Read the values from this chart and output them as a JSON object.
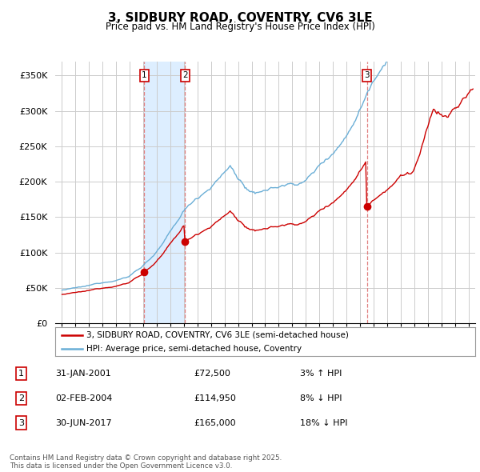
{
  "title": "3, SIDBURY ROAD, COVENTRY, CV6 3LE",
  "subtitle": "Price paid vs. HM Land Registry's House Price Index (HPI)",
  "ylabel_ticks": [
    "£0",
    "£50K",
    "£100K",
    "£150K",
    "£200K",
    "£250K",
    "£300K",
    "£350K"
  ],
  "ylim": [
    0,
    370000
  ],
  "xlim_start": 1994.5,
  "xlim_end": 2025.5,
  "hpi_color": "#6aaed6",
  "price_color": "#cc0000",
  "shade_color": "#ddeeff",
  "vline_color": "#e08080",
  "background_color": "#ffffff",
  "grid_color": "#cccccc",
  "legend_label_price": "3, SIDBURY ROAD, COVENTRY, CV6 3LE (semi-detached house)",
  "legend_label_hpi": "HPI: Average price, semi-detached house, Coventry",
  "sales": [
    {
      "num": 1,
      "date_label": "31-JAN-2001",
      "date_x": 2001.08,
      "price": 72500,
      "pct": "3%",
      "dir": "↑"
    },
    {
      "num": 2,
      "date_label": "02-FEB-2004",
      "date_x": 2004.09,
      "price": 114950,
      "pct": "8%",
      "dir": "↓"
    },
    {
      "num": 3,
      "date_label": "30-JUN-2017",
      "date_x": 2017.5,
      "price": 165000,
      "pct": "18%",
      "dir": "↓"
    }
  ],
  "footer": "Contains HM Land Registry data © Crown copyright and database right 2025.\nThis data is licensed under the Open Government Licence v3.0."
}
